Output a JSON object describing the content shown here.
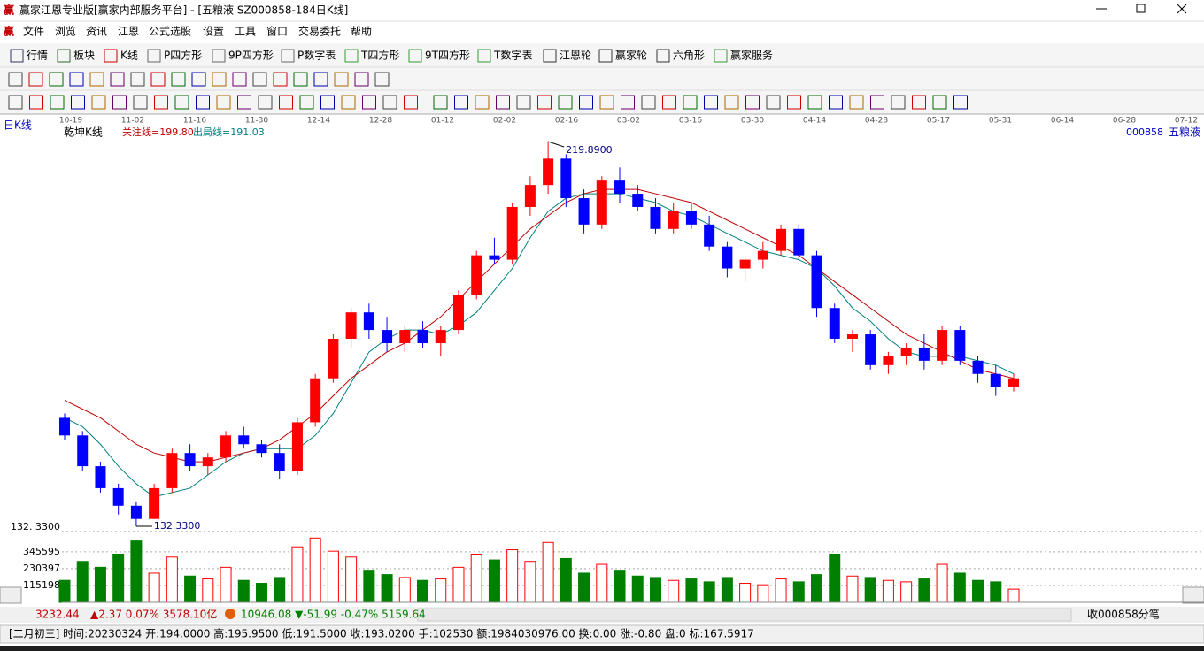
{
  "window": {
    "title": "赢家江恩专业版[赢家内部服务平台] - [五粮液  SZ000858-184日K线]"
  },
  "menu": [
    "文件",
    "浏览",
    "资讯",
    "江恩",
    "公式选股",
    "设置",
    "工具",
    "窗口",
    "交易委托",
    "帮助"
  ],
  "toolbar": [
    "行情",
    "板块",
    "K线",
    "P四方形",
    "9P四方形",
    "P数字表",
    "T四方形",
    "9T四方形",
    "T数字表",
    "江恩轮",
    "赢家轮",
    "六角形",
    "赢家服务"
  ],
  "chart_data": {
    "type": "candlestick",
    "period_label": "日K线",
    "indicator_name": "乾坤K线",
    "watch_line": "关注线=199.80",
    "exit_line": "出局线=191.03",
    "code": "000858",
    "stock_name": "五粮液",
    "date_labels": [
      "10-19",
      "11-02",
      "11-16",
      "11-30",
      "12-14",
      "12-28",
      "01-12",
      "02-02",
      "02-16",
      "03-02",
      "03-16",
      "03-30",
      "04-14",
      "04-28",
      "05-17",
      "05-31",
      "06-14",
      "06-28",
      "07-12"
    ],
    "ylim": [
      132.33,
      219.89
    ],
    "yticks": [
      {
        "value": 132.33,
        "label": "132. 3300"
      }
    ],
    "annotations": [
      {
        "value": 219.89,
        "label": "219.8900"
      },
      {
        "value": 132.33,
        "label": "132.3300"
      }
    ],
    "up_color": "#ff0000",
    "down_color": "#0000ff",
    "open": [
      157,
      153,
      146,
      141,
      137,
      134,
      141,
      149,
      146,
      148,
      153,
      151,
      149,
      145,
      156,
      166,
      175,
      181,
      177,
      174,
      177,
      174,
      177,
      185,
      194,
      193,
      205,
      210,
      216,
      207,
      201,
      211,
      208,
      205,
      200,
      204,
      201,
      196,
      191,
      193,
      195,
      200,
      194,
      182,
      175,
      176,
      169,
      171,
      173,
      170,
      177,
      170,
      167,
      164
    ],
    "high": [
      158,
      154,
      147,
      142,
      138,
      142,
      150,
      151,
      149,
      154,
      155,
      152,
      151,
      157,
      167,
      176,
      182,
      183,
      180,
      178,
      179,
      178,
      186,
      195,
      198,
      206,
      212,
      219.89,
      217,
      209,
      212,
      214,
      210,
      207,
      206,
      206,
      203,
      197,
      194,
      197,
      201,
      201,
      195,
      183,
      177,
      177,
      172,
      174,
      176,
      178,
      178,
      171,
      169,
      167
    ],
    "low": [
      152,
      145,
      140,
      135,
      132.33,
      134,
      140,
      145,
      144,
      147,
      150,
      148,
      143,
      144,
      155,
      165,
      173,
      175,
      172,
      172,
      173,
      171,
      176,
      184,
      192,
      192,
      203,
      208,
      205,
      199,
      200,
      206,
      204,
      199,
      199,
      200,
      195,
      189,
      188,
      191,
      194,
      193,
      180,
      174,
      172,
      168,
      167,
      169,
      168,
      169,
      169,
      165,
      162,
      163
    ],
    "close": [
      153,
      146,
      141,
      137,
      134,
      141,
      149,
      146,
      148,
      153,
      151,
      149,
      145,
      156,
      166,
      175,
      181,
      177,
      174,
      177,
      174,
      177,
      185,
      194,
      193,
      205,
      210,
      216,
      207,
      201,
      211,
      208,
      205,
      200,
      204,
      201,
      196,
      191,
      193,
      195,
      200,
      194,
      182,
      175,
      176,
      169,
      171,
      173,
      170,
      177,
      170,
      167,
      164,
      166
    ],
    "ma_series": [
      {
        "color": "#008080",
        "values": [
          157,
          155,
          151,
          146,
          142,
          139,
          140,
          141,
          144,
          147,
          149,
          150,
          150,
          150,
          153,
          158,
          165,
          172,
          175,
          177,
          177,
          176,
          178,
          181,
          186,
          191,
          198,
          204,
          207,
          208,
          208,
          208,
          207,
          206,
          204,
          203,
          201,
          199,
          197,
          195,
          194,
          193,
          191,
          187,
          182,
          179,
          175,
          172,
          171,
          171,
          171,
          170,
          169,
          167
        ]
      },
      {
        "color": "#c00000",
        "values": [
          161,
          159,
          157,
          154,
          151,
          149,
          148,
          147,
          147,
          148,
          149,
          150,
          152,
          155,
          158,
          162,
          166,
          169,
          172,
          174,
          177,
          180,
          184,
          188,
          192,
          196,
          200,
          203,
          206,
          208,
          209,
          209,
          209,
          208,
          207,
          206,
          204,
          202,
          200,
          198,
          196,
          194,
          191,
          188,
          185,
          182,
          179,
          176,
          174,
          172,
          170,
          168,
          167,
          166
        ]
      }
    ],
    "volume_ylim": [
      0,
      460000
    ],
    "volume_ticks": [
      115198,
      230397,
      345595
    ],
    "volume_up_color": "#ff0000",
    "volume_down_color": "#008000",
    "volume": [
      150000,
      280000,
      240000,
      330000,
      420000,
      200000,
      310000,
      180000,
      160000,
      240000,
      150000,
      130000,
      170000,
      380000,
      440000,
      350000,
      310000,
      220000,
      190000,
      170000,
      150000,
      160000,
      240000,
      330000,
      290000,
      360000,
      280000,
      410000,
      300000,
      200000,
      260000,
      220000,
      180000,
      170000,
      150000,
      160000,
      140000,
      170000,
      130000,
      120000,
      160000,
      140000,
      190000,
      330000,
      180000,
      170000,
      150000,
      140000,
      160000,
      260000,
      200000,
      150000,
      140000,
      90000
    ]
  },
  "index_bar": {
    "sh_value": "3232.44",
    "sh_change": "▲2.37 0.07% 3578.10亿",
    "sz_text": "10946.08 ▼-51.99 -0.47% 5159.64",
    "ticker_button": "收000858分笔"
  },
  "status": "[二月初三] 时间:20230324 开:194.0000 高:195.9500 低:191.5000 收:193.0200 手:102530 额:1984030976.00 换:0.00 涨:-0.80 盘:0 标:167.5917"
}
